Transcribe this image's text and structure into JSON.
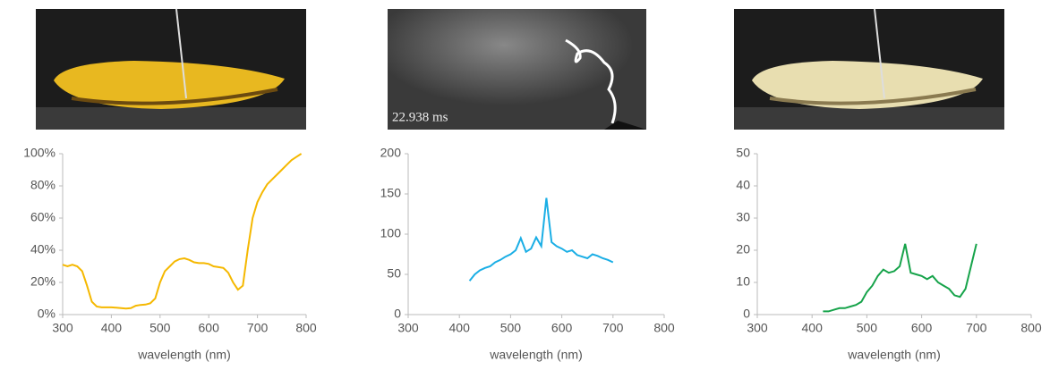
{
  "chart_data": [
    {
      "type": "line",
      "x_label": "wavelength (nm)",
      "x": [
        300,
        310,
        320,
        330,
        340,
        350,
        360,
        370,
        380,
        390,
        400,
        410,
        420,
        430,
        440,
        450,
        460,
        470,
        480,
        490,
        500,
        510,
        520,
        530,
        540,
        550,
        560,
        570,
        580,
        590,
        600,
        610,
        620,
        630,
        640,
        650,
        660,
        670,
        680,
        690,
        700,
        710,
        720,
        730,
        740,
        750,
        760,
        770,
        780,
        790
      ],
      "series": [
        {
          "color": "#f5b800",
          "values": [
            31,
            30,
            31,
            30,
            27,
            18,
            8,
            5,
            4.5,
            4.5,
            4.5,
            4.3,
            4,
            3.8,
            4,
            5.5,
            6,
            6.2,
            7,
            10,
            20,
            27,
            30,
            33,
            34.5,
            35,
            34,
            32.5,
            32,
            32,
            31.5,
            30,
            29.5,
            29,
            26,
            20,
            15.5,
            18,
            40,
            60,
            70,
            76,
            81,
            84,
            87,
            90,
            93,
            96,
            98,
            100
          ]
        }
      ],
      "xlim": [
        300,
        800
      ],
      "xticks": [
        300,
        400,
        500,
        600,
        700,
        800
      ],
      "ylim": [
        0,
        100
      ],
      "yticks": [
        {
          "value": 0,
          "label": "0%"
        },
        {
          "value": 20,
          "label": "20%"
        },
        {
          "value": 40,
          "label": "40%"
        },
        {
          "value": 60,
          "label": "60%"
        },
        {
          "value": 80,
          "label": "80%"
        },
        {
          "value": 100,
          "label": "100%"
        }
      ]
    },
    {
      "type": "line",
      "x_label": "wavelength (nm)",
      "annotation": "22.938 ms",
      "x": [
        420,
        430,
        440,
        450,
        460,
        470,
        480,
        490,
        500,
        510,
        520,
        530,
        540,
        550,
        560,
        570,
        580,
        590,
        600,
        610,
        620,
        630,
        640,
        650,
        660,
        670,
        680,
        690,
        700
      ],
      "series": [
        {
          "color": "#1aaee5",
          "values": [
            42,
            50,
            55,
            58,
            60,
            65,
            68,
            72,
            75,
            80,
            95,
            78,
            82,
            96,
            85,
            145,
            90,
            85,
            82,
            78,
            80,
            74,
            72,
            70,
            75,
            73,
            70,
            68,
            65
          ]
        }
      ],
      "xlim": [
        300,
        800
      ],
      "xticks": [
        300,
        400,
        500,
        600,
        700,
        800
      ],
      "ylim": [
        0,
        200
      ],
      "yticks": [
        0,
        50,
        100,
        150,
        200
      ]
    },
    {
      "type": "line",
      "x_label": "wavelength (nm)",
      "x": [
        420,
        430,
        440,
        450,
        460,
        470,
        480,
        490,
        500,
        510,
        520,
        530,
        540,
        550,
        560,
        570,
        580,
        590,
        600,
        610,
        620,
        630,
        640,
        650,
        660,
        670,
        680,
        690,
        700
      ],
      "series": [
        {
          "color": "#16a34a",
          "values": [
            1,
            1,
            1.5,
            2,
            2,
            2.5,
            3,
            4,
            7,
            9,
            12,
            14,
            13,
            13.5,
            15,
            22,
            13,
            12.5,
            12,
            11,
            12,
            10,
            9,
            8,
            6,
            5.5,
            8,
            15,
            22
          ]
        }
      ],
      "xlim": [
        300,
        800
      ],
      "xticks": [
        300,
        400,
        500,
        600,
        700,
        800
      ],
      "ylim": [
        0,
        50
      ],
      "yticks": [
        0,
        10,
        20,
        30,
        40,
        50
      ]
    }
  ]
}
